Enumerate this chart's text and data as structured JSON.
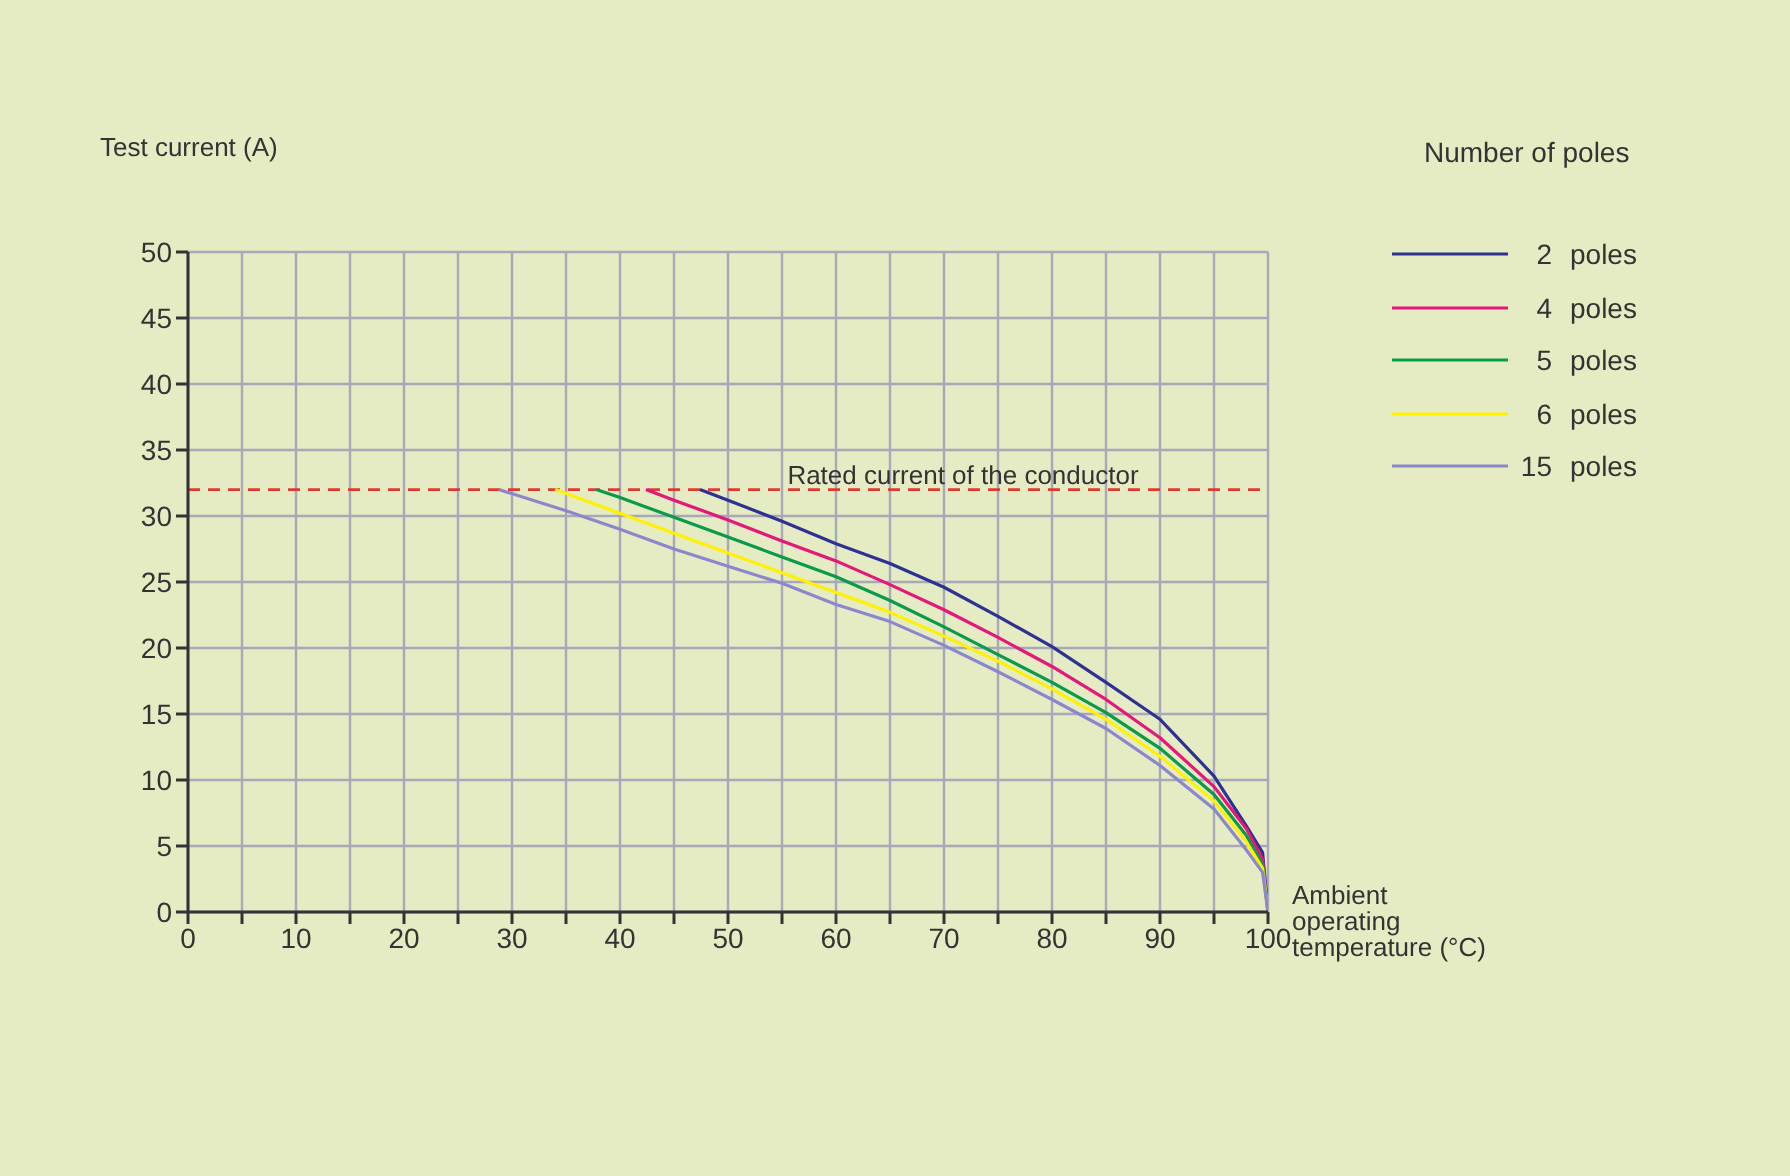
{
  "chart_data": {
    "type": "line",
    "ylabel": "Test current (A)",
    "xlabel": "Ambient operating temperature (°C)",
    "legend_title": "Number of poles",
    "legend": "top right",
    "grid": true,
    "marker": "none",
    "line_style": "solid",
    "xlim": [
      0,
      100
    ],
    "ylim": [
      0,
      50
    ],
    "xticks": [
      0,
      {
        "value": 5,
        "label": null
      },
      10,
      {
        "value": 15,
        "label": null
      },
      20,
      {
        "value": 25,
        "label": null
      },
      30,
      {
        "value": 35,
        "label": null
      },
      40,
      {
        "value": 45,
        "label": null
      },
      50,
      {
        "value": 55,
        "label": null
      },
      60,
      {
        "value": 65,
        "label": null
      },
      70,
      {
        "value": 75,
        "label": null
      },
      80,
      {
        "value": 85,
        "label": null
      },
      90,
      {
        "value": 95,
        "label": null
      },
      100
    ],
    "yticks": [
      0,
      5,
      10,
      15,
      20,
      25,
      30,
      35,
      40,
      45,
      50
    ],
    "ref_lines": [
      {
        "axis": "y",
        "value": 32,
        "label": "Rated current of the conductor",
        "color": "#e03a30",
        "line_style": "dashed"
      }
    ],
    "series": [
      {
        "name": "2  poles",
        "color": "#2e3192",
        "x": [
          47.4,
          50,
          55,
          60,
          65,
          70,
          75,
          80,
          85,
          90,
          95,
          98,
          99.5,
          100
        ],
        "values": [
          32,
          31.2,
          29.6,
          27.9,
          26.4,
          24.6,
          22.4,
          20.1,
          17.4,
          14.6,
          10.3,
          6.5,
          4.5,
          0
        ]
      },
      {
        "name": "4  poles",
        "color": "#e6177a",
        "x": [
          42.4,
          45,
          50,
          55,
          60,
          65,
          70,
          75,
          80,
          85,
          90,
          95,
          98,
          99.5,
          100
        ],
        "values": [
          32,
          31.2,
          29.7,
          28.1,
          26.6,
          24.8,
          22.9,
          20.8,
          18.6,
          16.1,
          13.2,
          9.5,
          6.3,
          4,
          0
        ]
      },
      {
        "name": "5  poles",
        "color": "#0a9a48",
        "x": [
          37.8,
          40,
          45,
          50,
          55,
          60,
          65,
          70,
          75,
          80,
          85,
          90,
          95,
          98,
          99.5,
          100
        ],
        "values": [
          32,
          31.4,
          29.9,
          28.4,
          26.9,
          25.4,
          23.6,
          21.6,
          19.5,
          17.4,
          15.1,
          12.4,
          8.9,
          5.8,
          3.6,
          0
        ]
      },
      {
        "name": "6  poles",
        "color": "#fff200",
        "x": [
          34,
          40,
          45,
          50,
          55,
          60,
          65,
          70,
          75,
          80,
          85,
          90,
          95,
          98,
          99.5,
          100
        ],
        "values": [
          32,
          30.2,
          28.7,
          27.2,
          25.7,
          24.2,
          22.7,
          20.9,
          19,
          16.9,
          14.6,
          11.8,
          8.4,
          5.3,
          3.3,
          0
        ]
      },
      {
        "name": "15  poles",
        "color": "#8c87cc",
        "x": [
          28.8,
          35,
          40,
          45,
          50,
          55,
          60,
          65,
          70,
          75,
          80,
          85,
          90,
          95,
          98,
          99.5,
          100
        ],
        "values": [
          32,
          30.4,
          29,
          27.5,
          26.2,
          24.9,
          23.3,
          22,
          20.2,
          18.2,
          16.1,
          13.9,
          11.1,
          7.8,
          4.7,
          3,
          0
        ]
      }
    ]
  }
}
